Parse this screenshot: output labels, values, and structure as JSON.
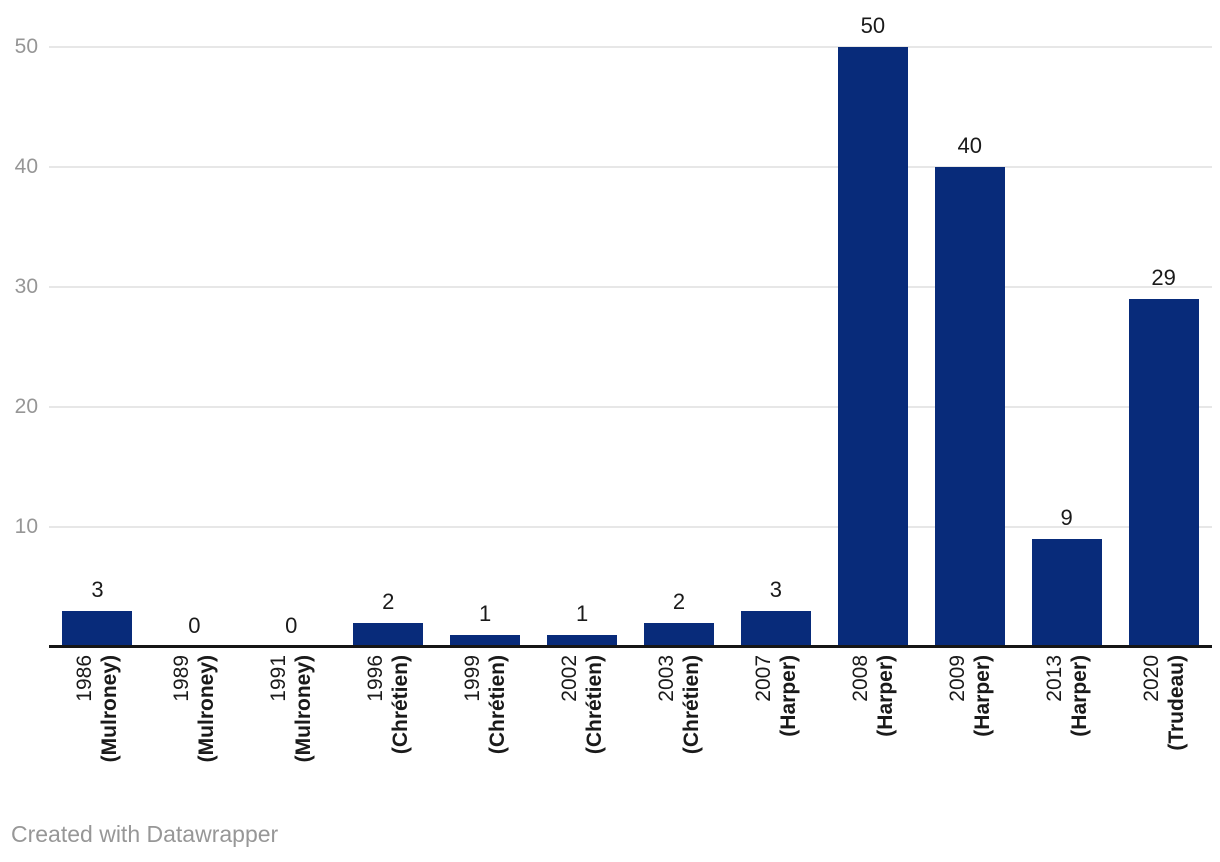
{
  "chart_data": {
    "type": "bar",
    "categories": [
      {
        "year": "1986",
        "pm": "(Mulroney)"
      },
      {
        "year": "1989",
        "pm": "(Mulroney)"
      },
      {
        "year": "1991",
        "pm": "(Mulroney)"
      },
      {
        "year": "1996",
        "pm": "(Chrétien)"
      },
      {
        "year": "1999",
        "pm": "(Chrétien)"
      },
      {
        "year": "2002",
        "pm": "(Chrétien)"
      },
      {
        "year": "2003",
        "pm": "(Chrétien)"
      },
      {
        "year": "2007",
        "pm": "(Harper)"
      },
      {
        "year": "2008",
        "pm": "(Harper)"
      },
      {
        "year": "2009",
        "pm": "(Harper)"
      },
      {
        "year": "2013",
        "pm": "(Harper)"
      },
      {
        "year": "2020",
        "pm": "(Trudeau)"
      }
    ],
    "values": [
      3,
      0,
      0,
      2,
      1,
      1,
      2,
      3,
      50,
      40,
      9,
      29
    ],
    "value_labels": [
      "3",
      "0",
      "0",
      "2",
      "1",
      "1",
      "2",
      "3",
      "50",
      "40",
      "9",
      "29"
    ],
    "yticks": [
      10,
      20,
      30,
      40,
      50
    ],
    "ylim": [
      0,
      50
    ],
    "grid": true,
    "legend": "none",
    "title": "",
    "xlabel": "",
    "ylabel": "",
    "colors": {
      "bar": "#082b7a",
      "axis_line": "#161616",
      "gridline": "#e7e7e7",
      "tick_label": "#969696",
      "value_label": "#1a1a1a",
      "category_label": "#1a1a1a"
    }
  },
  "footer": {
    "credit": "Created with Datawrapper"
  }
}
